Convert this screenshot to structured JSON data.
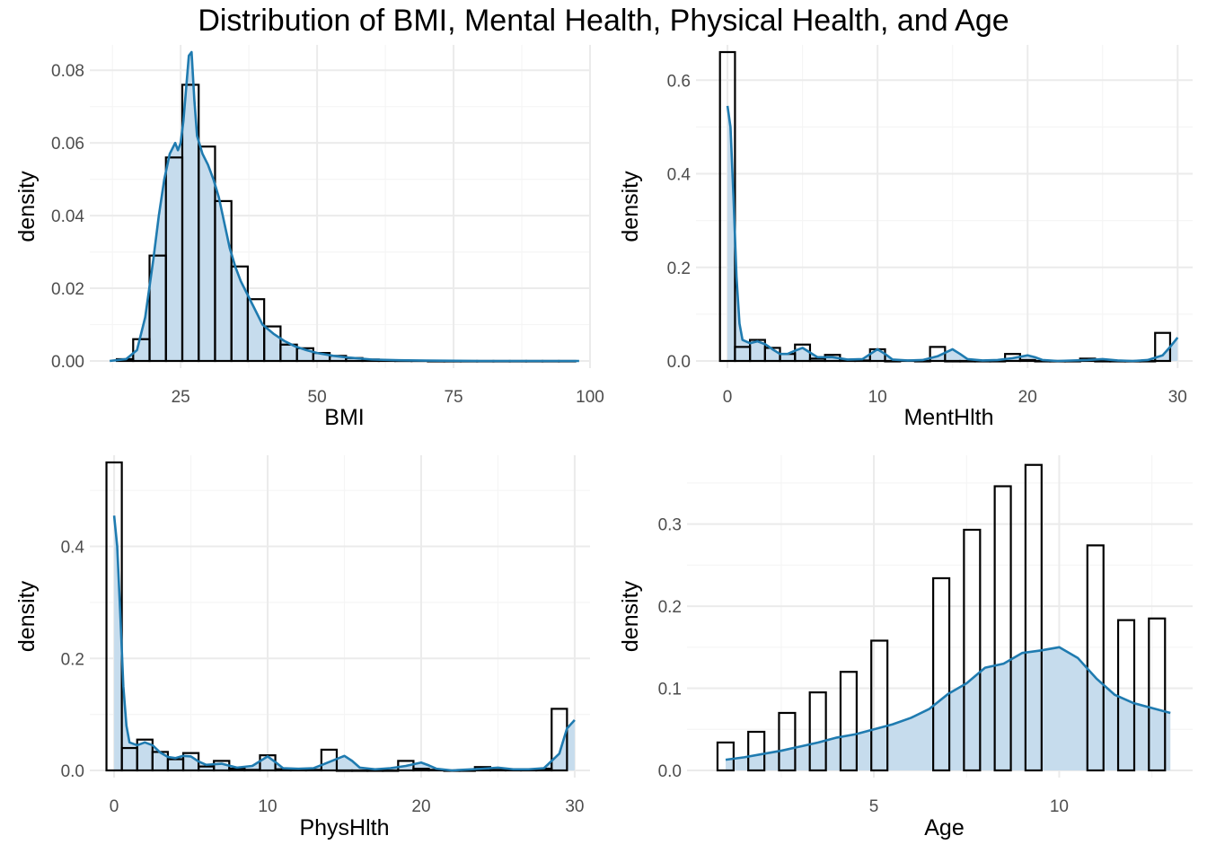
{
  "title": "Distribution of BMI, Mental Health, Physical Health, and Age",
  "colors": {
    "density_line": "#1f7bb0",
    "density_fill": "#c6dced",
    "bar_stroke": "#000000",
    "grid_major": "#ebebeb",
    "grid_minor": "#f5f5f5",
    "tick_text": "#4d4d4d"
  },
  "chart_data": [
    {
      "type": "histogram",
      "xlabel": "BMI",
      "ylabel": "density",
      "xlim": [
        10,
        100
      ],
      "ylim": [
        0,
        0.085
      ],
      "xticks": [
        25,
        50,
        75,
        100
      ],
      "xtick_labels": [
        "25",
        "50",
        "75",
        "100"
      ],
      "yticks": [
        0,
        0.02,
        0.04,
        0.06,
        0.08
      ],
      "ytick_labels": [
        "0.00",
        "0.02",
        "0.04",
        "0.06",
        "0.08"
      ],
      "bin_width": 3,
      "bins": [
        {
          "x0": 13.3,
          "value": 0.0005
        },
        {
          "x0": 16.3,
          "value": 0.006
        },
        {
          "x0": 19.3,
          "value": 0.029
        },
        {
          "x0": 22.3,
          "value": 0.056
        },
        {
          "x0": 25.3,
          "value": 0.076
        },
        {
          "x0": 28.3,
          "value": 0.059
        },
        {
          "x0": 31.3,
          "value": 0.044
        },
        {
          "x0": 34.3,
          "value": 0.026
        },
        {
          "x0": 37.3,
          "value": 0.017
        },
        {
          "x0": 40.3,
          "value": 0.0095
        },
        {
          "x0": 43.3,
          "value": 0.0045
        },
        {
          "x0": 46.3,
          "value": 0.0035
        },
        {
          "x0": 49.3,
          "value": 0.0022
        },
        {
          "x0": 52.3,
          "value": 0.0014
        },
        {
          "x0": 55.3,
          "value": 0.0008
        },
        {
          "x0": 58.3,
          "value": 0.0004
        },
        {
          "x0": 61.3,
          "value": 0.0002
        },
        {
          "x0": 64.3,
          "value": 0.0001
        },
        {
          "x0": 67.3,
          "value": 0.0001
        },
        {
          "x0": 70.3,
          "value": 0.0
        },
        {
          "x0": 73.3,
          "value": 0.0
        },
        {
          "x0": 76.3,
          "value": 0.0
        },
        {
          "x0": 79.3,
          "value": 0.0
        },
        {
          "x0": 82.3,
          "value": 0.0
        },
        {
          "x0": 85.3,
          "value": 0.0
        },
        {
          "x0": 88.3,
          "value": 0.0
        },
        {
          "x0": 91.3,
          "value": 0.0
        },
        {
          "x0": 94.3,
          "value": 0.0
        }
      ],
      "density": [
        [
          12,
          0.0
        ],
        [
          15,
          0.0005
        ],
        [
          17,
          0.003
        ],
        [
          18.5,
          0.012
        ],
        [
          20,
          0.028
        ],
        [
          21,
          0.04
        ],
        [
          22,
          0.05
        ],
        [
          23,
          0.057
        ],
        [
          24,
          0.06
        ],
        [
          24.5,
          0.058
        ],
        [
          25,
          0.06
        ],
        [
          25.5,
          0.066
        ],
        [
          26,
          0.075
        ],
        [
          26.5,
          0.084
        ],
        [
          27,
          0.085
        ],
        [
          27.5,
          0.072
        ],
        [
          28,
          0.062
        ],
        [
          29,
          0.057
        ],
        [
          30,
          0.054
        ],
        [
          31,
          0.05
        ],
        [
          32,
          0.045
        ],
        [
          33,
          0.038
        ],
        [
          34,
          0.031
        ],
        [
          35,
          0.026
        ],
        [
          36,
          0.022
        ],
        [
          37,
          0.019
        ],
        [
          38,
          0.016
        ],
        [
          39,
          0.013
        ],
        [
          40,
          0.01
        ],
        [
          42,
          0.0075
        ],
        [
          44,
          0.0055
        ],
        [
          46,
          0.004
        ],
        [
          48,
          0.003
        ],
        [
          50,
          0.0022
        ],
        [
          53,
          0.0014
        ],
        [
          56,
          0.0009
        ],
        [
          60,
          0.0004
        ],
        [
          65,
          0.0002
        ],
        [
          70,
          0.0001
        ],
        [
          80,
          0.0
        ],
        [
          90,
          0.0
        ],
        [
          98,
          0.0
        ]
      ]
    },
    {
      "type": "histogram",
      "xlabel": "MentHlth",
      "ylabel": "density",
      "xlim": [
        -1.5,
        31
      ],
      "ylim": [
        0,
        0.66
      ],
      "xticks": [
        0,
        10,
        20,
        30
      ],
      "xtick_labels": [
        "0",
        "10",
        "20",
        "30"
      ],
      "yticks": [
        0,
        0.2,
        0.4,
        0.6
      ],
      "ytick_labels": [
        "0.0",
        "0.2",
        "0.4",
        "0.6"
      ],
      "bin_width": 1,
      "bins": [
        {
          "x0": -0.5,
          "value": 0.66
        },
        {
          "x0": 0.5,
          "value": 0.03
        },
        {
          "x0": 1.5,
          "value": 0.045
        },
        {
          "x0": 2.5,
          "value": 0.028
        },
        {
          "x0": 3.5,
          "value": 0.015
        },
        {
          "x0": 4.5,
          "value": 0.035
        },
        {
          "x0": 5.5,
          "value": 0.005
        },
        {
          "x0": 6.5,
          "value": 0.013
        },
        {
          "x0": 7.5,
          "value": 0.002
        },
        {
          "x0": 8.5,
          "value": 0.001
        },
        {
          "x0": 9.5,
          "value": 0.025
        },
        {
          "x0": 10.5,
          "value": 0.0
        },
        {
          "x0": 11.5,
          "value": 0.001
        },
        {
          "x0": 12.5,
          "value": 0.0
        },
        {
          "x0": 13.5,
          "value": 0.03
        },
        {
          "x0": 14.5,
          "value": 0.0
        },
        {
          "x0": 15.5,
          "value": 0.0
        },
        {
          "x0": 16.5,
          "value": 0.0
        },
        {
          "x0": 17.5,
          "value": 0.0
        },
        {
          "x0": 18.5,
          "value": 0.015
        },
        {
          "x0": 19.5,
          "value": 0.002
        },
        {
          "x0": 20.5,
          "value": 0.0
        },
        {
          "x0": 21.5,
          "value": 0.0
        },
        {
          "x0": 22.5,
          "value": 0.0
        },
        {
          "x0": 23.5,
          "value": 0.005
        },
        {
          "x0": 24.5,
          "value": 0.0
        },
        {
          "x0": 25.5,
          "value": 0.0
        },
        {
          "x0": 26.5,
          "value": 0.0
        },
        {
          "x0": 27.5,
          "value": 0.0
        },
        {
          "x0": 28.5,
          "value": 0.06
        }
      ],
      "density": [
        [
          0,
          0.545
        ],
        [
          0.2,
          0.5
        ],
        [
          0.4,
          0.35
        ],
        [
          0.6,
          0.18
        ],
        [
          0.8,
          0.08
        ],
        [
          1.0,
          0.045
        ],
        [
          1.5,
          0.038
        ],
        [
          2,
          0.042
        ],
        [
          2.5,
          0.036
        ],
        [
          3,
          0.025
        ],
        [
          3.5,
          0.015
        ],
        [
          4,
          0.015
        ],
        [
          4.5,
          0.022
        ],
        [
          5,
          0.028
        ],
        [
          5.5,
          0.018
        ],
        [
          6,
          0.008
        ],
        [
          7,
          0.008
        ],
        [
          8,
          0.003
        ],
        [
          9,
          0.004
        ],
        [
          10,
          0.025
        ],
        [
          10.5,
          0.015
        ],
        [
          11,
          0.003
        ],
        [
          12,
          0.001
        ],
        [
          13,
          0.002
        ],
        [
          14,
          0.01
        ],
        [
          15,
          0.025
        ],
        [
          15.5,
          0.015
        ],
        [
          16,
          0.004
        ],
        [
          17,
          0.001
        ],
        [
          18,
          0.002
        ],
        [
          19,
          0.006
        ],
        [
          20,
          0.012
        ],
        [
          20.5,
          0.008
        ],
        [
          21,
          0.002
        ],
        [
          22,
          0.0
        ],
        [
          24,
          0.002
        ],
        [
          25,
          0.004
        ],
        [
          26,
          0.001
        ],
        [
          27,
          0.0
        ],
        [
          28,
          0.002
        ],
        [
          29,
          0.012
        ],
        [
          29.5,
          0.03
        ],
        [
          30,
          0.05
        ]
      ]
    },
    {
      "type": "histogram",
      "xlabel": "PhysHlth",
      "ylabel": "density",
      "xlim": [
        -1,
        31
      ],
      "ylim": [
        0,
        0.55
      ],
      "xticks": [
        0,
        10,
        20,
        30
      ],
      "xtick_labels": [
        "0",
        "10",
        "20",
        "30"
      ],
      "yticks": [
        0,
        0.2,
        0.4
      ],
      "ytick_labels": [
        "0.0",
        "0.2",
        "0.4"
      ],
      "bin_width": 1,
      "bins": [
        {
          "x0": -0.5,
          "value": 0.55
        },
        {
          "x0": 0.5,
          "value": 0.04
        },
        {
          "x0": 1.5,
          "value": 0.055
        },
        {
          "x0": 2.5,
          "value": 0.033
        },
        {
          "x0": 3.5,
          "value": 0.02
        },
        {
          "x0": 4.5,
          "value": 0.031
        },
        {
          "x0": 5.5,
          "value": 0.007
        },
        {
          "x0": 6.5,
          "value": 0.017
        },
        {
          "x0": 7.5,
          "value": 0.003
        },
        {
          "x0": 8.5,
          "value": 0.001
        },
        {
          "x0": 9.5,
          "value": 0.027
        },
        {
          "x0": 10.5,
          "value": 0.002
        },
        {
          "x0": 11.5,
          "value": 0.002
        },
        {
          "x0": 12.5,
          "value": 0.001
        },
        {
          "x0": 13.5,
          "value": 0.037
        },
        {
          "x0": 14.5,
          "value": 0.0
        },
        {
          "x0": 15.5,
          "value": 0.0
        },
        {
          "x0": 16.5,
          "value": 0.0
        },
        {
          "x0": 17.5,
          "value": 0.0
        },
        {
          "x0": 18.5,
          "value": 0.017
        },
        {
          "x0": 19.5,
          "value": 0.003
        },
        {
          "x0": 20.5,
          "value": 0.001
        },
        {
          "x0": 21.5,
          "value": 0.0
        },
        {
          "x0": 22.5,
          "value": 0.0
        },
        {
          "x0": 23.5,
          "value": 0.006
        },
        {
          "x0": 24.5,
          "value": 0.001
        },
        {
          "x0": 25.5,
          "value": 0.001
        },
        {
          "x0": 26.5,
          "value": 0.002
        },
        {
          "x0": 27.5,
          "value": 0.003
        },
        {
          "x0": 28.5,
          "value": 0.11
        }
      ],
      "density": [
        [
          0,
          0.455
        ],
        [
          0.2,
          0.4
        ],
        [
          0.4,
          0.28
        ],
        [
          0.6,
          0.15
        ],
        [
          0.8,
          0.08
        ],
        [
          1.0,
          0.05
        ],
        [
          1.5,
          0.045
        ],
        [
          2,
          0.05
        ],
        [
          2.5,
          0.045
        ],
        [
          3,
          0.032
        ],
        [
          3.5,
          0.024
        ],
        [
          4,
          0.022
        ],
        [
          4.5,
          0.026
        ],
        [
          5,
          0.025
        ],
        [
          5.5,
          0.016
        ],
        [
          6,
          0.01
        ],
        [
          7,
          0.012
        ],
        [
          8,
          0.005
        ],
        [
          9,
          0.008
        ],
        [
          10,
          0.025
        ],
        [
          10.5,
          0.015
        ],
        [
          11,
          0.004
        ],
        [
          12,
          0.003
        ],
        [
          13,
          0.004
        ],
        [
          14,
          0.015
        ],
        [
          15,
          0.026
        ],
        [
          15.5,
          0.017
        ],
        [
          16,
          0.005
        ],
        [
          17,
          0.002
        ],
        [
          18,
          0.004
        ],
        [
          19,
          0.008
        ],
        [
          20,
          0.014
        ],
        [
          20.5,
          0.009
        ],
        [
          21,
          0.003
        ],
        [
          22,
          0.0
        ],
        [
          24,
          0.003
        ],
        [
          25,
          0.005
        ],
        [
          26,
          0.002
        ],
        [
          27,
          0.002
        ],
        [
          28,
          0.004
        ],
        [
          29,
          0.03
        ],
        [
          29.5,
          0.075
        ],
        [
          30,
          0.09
        ]
      ]
    },
    {
      "type": "histogram",
      "xlabel": "Age",
      "ylabel": "density",
      "xlim": [
        0.2,
        13.6
      ],
      "ylim": [
        0,
        0.375
      ],
      "xticks": [
        5,
        10
      ],
      "xtick_labels": [
        "5",
        "10"
      ],
      "yticks": [
        0,
        0.1,
        0.2,
        0.3
      ],
      "ytick_labels": [
        "0.0",
        "0.1",
        "0.2",
        "0.3"
      ],
      "bin_width": 0.435,
      "bins": [
        {
          "x0": 0.78,
          "value": 0.034
        },
        {
          "x0": 1.61,
          "value": 0.047
        },
        {
          "x0": 2.44,
          "value": 0.07
        },
        {
          "x0": 3.27,
          "value": 0.095
        },
        {
          "x0": 4.1,
          "value": 0.12
        },
        {
          "x0": 4.93,
          "value": 0.158
        },
        {
          "x0": 6.6,
          "value": 0.234
        },
        {
          "x0": 7.43,
          "value": 0.293
        },
        {
          "x0": 8.26,
          "value": 0.346
        },
        {
          "x0": 9.09,
          "value": 0.372
        },
        {
          "x0": 10.76,
          "value": 0.274
        },
        {
          "x0": 11.59,
          "value": 0.183
        },
        {
          "x0": 12.42,
          "value": 0.185
        }
      ],
      "density_bins": [
        [
          1.215,
          1.61
        ],
        [
          2.045,
          2.44
        ],
        [
          2.875,
          3.27
        ],
        [
          3.705,
          4.1
        ],
        [
          4.535,
          4.93
        ],
        [
          5.365,
          6.6
        ],
        [
          7.035,
          7.43
        ],
        [
          7.865,
          8.26
        ],
        [
          8.695,
          9.09
        ],
        [
          9.525,
          10.76
        ],
        [
          11.195,
          11.59
        ],
        [
          12.025,
          12.42
        ]
      ],
      "density": [
        [
          1.0,
          0.013
        ],
        [
          1.5,
          0.016
        ],
        [
          2.0,
          0.02
        ],
        [
          2.5,
          0.024
        ],
        [
          3.0,
          0.029
        ],
        [
          3.5,
          0.034
        ],
        [
          4.0,
          0.04
        ],
        [
          4.5,
          0.044
        ],
        [
          5.0,
          0.05
        ],
        [
          5.5,
          0.056
        ],
        [
          6.0,
          0.064
        ],
        [
          6.5,
          0.075
        ],
        [
          7.0,
          0.093
        ],
        [
          7.5,
          0.106
        ],
        [
          8.0,
          0.125
        ],
        [
          8.5,
          0.13
        ],
        [
          9.0,
          0.143
        ],
        [
          9.5,
          0.146
        ],
        [
          10.0,
          0.15
        ],
        [
          10.5,
          0.137
        ],
        [
          11.0,
          0.112
        ],
        [
          11.5,
          0.092
        ],
        [
          12.0,
          0.082
        ],
        [
          12.5,
          0.076
        ],
        [
          13.0,
          0.07
        ]
      ]
    }
  ]
}
